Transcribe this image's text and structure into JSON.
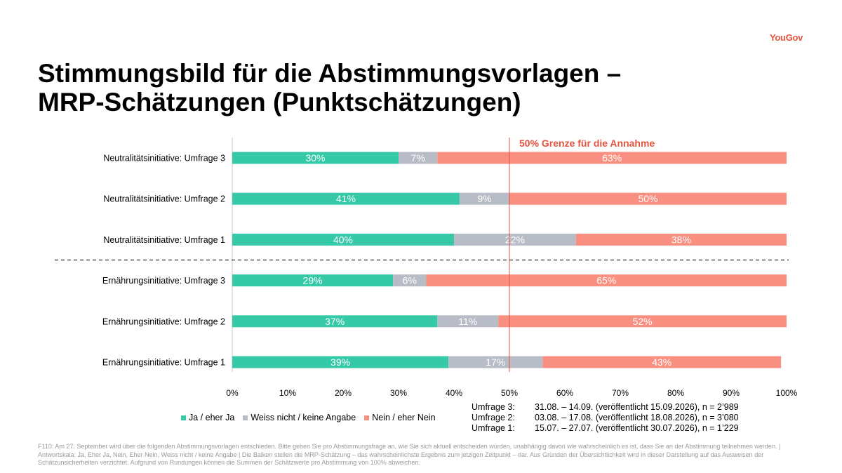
{
  "logo": "YouGov",
  "title_line1": "Stimmungsbild für die Abstimmungsvorlagen –",
  "title_line2": "MRP-Schätzungen (Punktschätzungen)",
  "colors": {
    "ja": "#35c9a7",
    "weiss": "#b8bcc6",
    "nein": "#f98f80",
    "accent": "#e5533f"
  },
  "chart_data": {
    "type": "bar",
    "orientation": "horizontal",
    "stacked": true,
    "categories": [
      "Neutralitätsinitiative: Umfrage 3",
      "Neutralitätsinitiative: Umfrage 2",
      "Neutralitätsinitiative: Umfrage 1",
      "Ernährungsinitiative: Umfrage 3",
      "Ernährungsinitiative: Umfrage 2",
      "Ernährungsinitiative: Umfrage 1"
    ],
    "series": [
      {
        "name": "Ja / eher Ja",
        "color": "#35c9a7",
        "values": [
          30,
          41,
          40,
          29,
          37,
          39
        ]
      },
      {
        "name": "Weiss nicht / keine Angabe",
        "color": "#b8bcc6",
        "values": [
          7,
          9,
          22,
          6,
          11,
          17
        ]
      },
      {
        "name": "Nein / eher Nein",
        "color": "#f98f80",
        "values": [
          63,
          50,
          38,
          65,
          52,
          43
        ]
      }
    ],
    "xlim": [
      0,
      100
    ],
    "ticks": [
      "0%",
      "10%",
      "20%",
      "30%",
      "40%",
      "50%",
      "60%",
      "70%",
      "80%",
      "90%",
      "100%"
    ],
    "reference_line": {
      "value": 50,
      "label": "50% Grenze für die Annahme"
    },
    "group_separator_after_index": 2,
    "legend_position": "bottom",
    "grid": false
  },
  "surveys": [
    {
      "name": "Umfrage 3:",
      "info": "31.08. – 14.09. (veröffentlicht 15.09.2026), n = 2’989"
    },
    {
      "name": "Umfrage 2:",
      "info": "03.08. – 17.08. (veröffentlicht 18.08.2026), n = 3’080"
    },
    {
      "name": "Umfrage 1:",
      "info": "15.07. – 27.07. (veröffentlicht 30.07.2026), n = 1’229"
    }
  ],
  "footnote": "F110: Am 27. September wird über die folgenden Abstimmungsvorlagen entschieden. Bitte geben Sie pro Abstimmungsfrage an, wie Sie sich aktuell entscheiden würden, unabhängig davon wie wahrscheinlich es ist, dass Sie an der Abstimmung teilnehmen werden. | Antwortskala: Ja, Eher Ja, Nein, Eher Nein, Weiss nicht / keine Angabe | Die Balken stellen die MRP-Schätzung – das wahrscheinlichste Ergebnis zum jetzigen Zeitpunkt – dar. Aus Gründen der Übersichtlichkeit wird in dieser Darstellung auf das Ausweisen der Schätzunsicherheiten verzichtet. Aufgrund von Rundungen können die Summen der Schätzwerte pro Abstimmung von 100% abweichen."
}
